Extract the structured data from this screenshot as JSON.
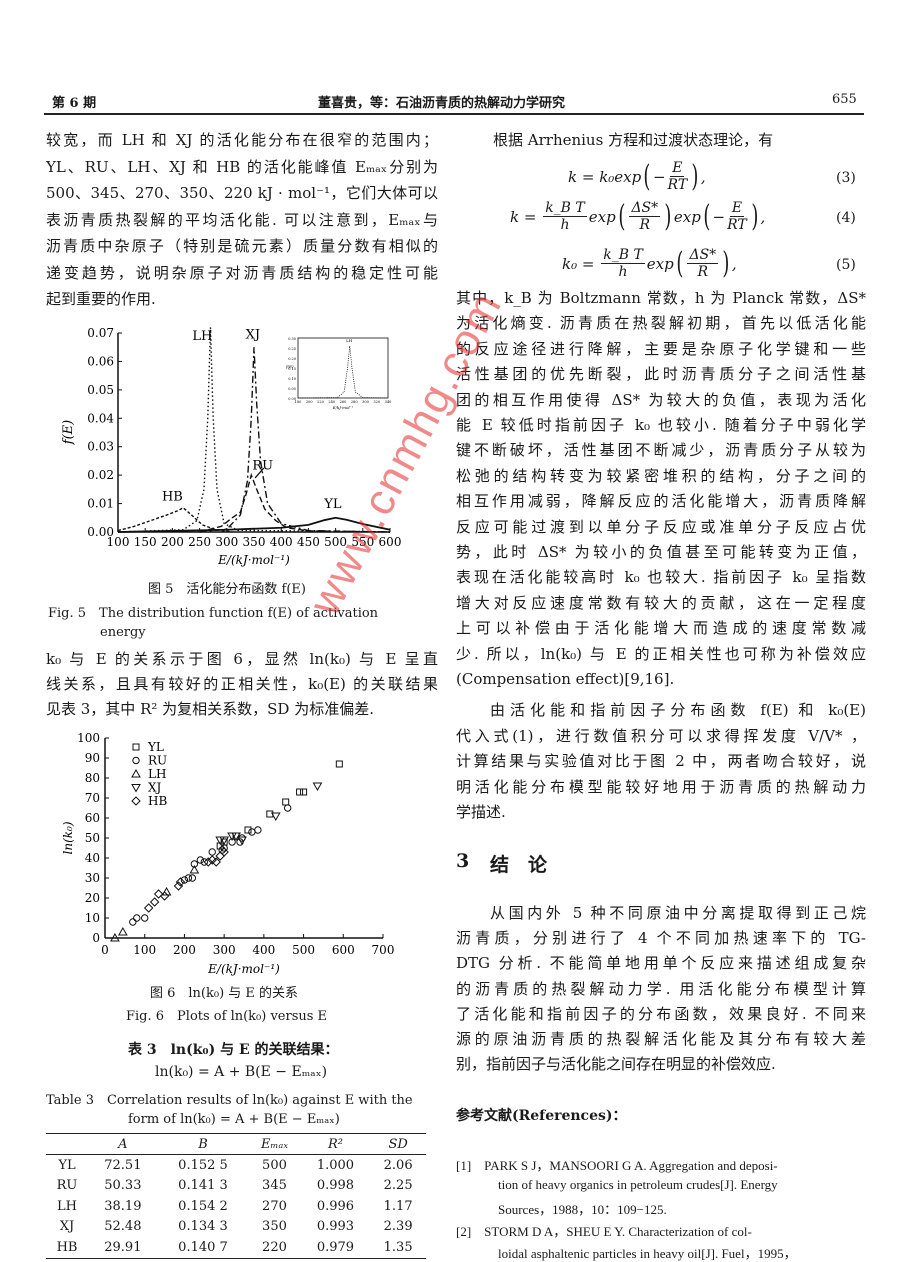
{
  "header": {
    "issue": "第 6 期",
    "title": "董喜贵，等：石油沥青质的热解动力学研究",
    "page": "655"
  },
  "left_top_lines": [
    "较宽，而 LH 和 XJ 的活化能分布在很窄的范围内；",
    "YL、RU、LH、XJ 和 HB 的活化能峰值 Eₘₐₓ分别为",
    "500、345、270、350、220 kJ · mol⁻¹，它们大体可以代",
    "表沥青质热裂解的平均活化能. 可以注意到，Eₘₐₓ与",
    "沥青质中杂原子（特别是硫元素）质量分数有相似的",
    "递变趋势，说明杂原子对沥青质结构的稳定性可能",
    "起到重要的作用."
  ],
  "fig5": {
    "caption_cn": "图 5　活化能分布函数 f(E)",
    "caption_en_1": "Fig. 5　The distribution function f(E) of activation",
    "caption_en_2": "energy"
  },
  "left_mid_lines": [
    "k₀ 与 E 的关系示于图 6，显然 ln(k₀) 与 E 呈直",
    "线关系，且具有较好的正相关性，k₀(E) 的关联结果",
    "见表 3，其中 R² 为复相关系数，SD 为标准偏差."
  ],
  "fig6": {
    "caption_cn": "图 6　ln(k₀) 与 E 的关系",
    "caption_en": "Fig. 6　Plots of ln(k₀) versus E"
  },
  "table3": {
    "title_cn_1": "表 3　ln(k₀) 与 E 的关联结果：",
    "title_cn_2": "ln(k₀) = A + B(E − Eₘₐₓ)",
    "title_en_1": "Table 3　Correlation results of ln(k₀) against E with the",
    "title_en_2": "form of ln(k₀) = A + B(E − Eₘₐₓ)",
    "columns": [
      "",
      "A",
      "B",
      "Eₘₐₓ",
      "R²",
      "SD"
    ],
    "rows": [
      [
        "YL",
        "72.51",
        "0.152 5",
        "500",
        "1.000",
        "2.06"
      ],
      [
        "RU",
        "50.33",
        "0.141 3",
        "345",
        "0.998",
        "2.25"
      ],
      [
        "LH",
        "38.19",
        "0.154 2",
        "270",
        "0.996",
        "1.17"
      ],
      [
        "XJ",
        "52.48",
        "0.134 3",
        "350",
        "0.993",
        "2.39"
      ],
      [
        "HB",
        "29.91",
        "0.140 7",
        "220",
        "0.979",
        "1.35"
      ]
    ]
  },
  "right_intro": "根据 Arrhenius 方程和过渡状态理论，有",
  "equations": [
    {
      "parts": [
        {
          "t": "k = k₀exp"
        },
        {
          "p": "("
        },
        {
          "t": "−"
        },
        {
          "n": "E",
          "d": "RT"
        },
        {
          "p": ")"
        },
        {
          "t": ","
        }
      ],
      "no": "(3)"
    },
    {
      "parts": [
        {
          "t": "k = "
        },
        {
          "n": "k_B T",
          "d": "h"
        },
        {
          "t": "exp"
        },
        {
          "p": "("
        },
        {
          "n": "ΔS*",
          "d": "R"
        },
        {
          "p": ")"
        },
        {
          "t": "exp"
        },
        {
          "p": "("
        },
        {
          "t": "−"
        },
        {
          "n": "E",
          "d": "RT"
        },
        {
          "p": ")"
        },
        {
          "t": ","
        }
      ],
      "no": "(4)"
    },
    {
      "parts": [
        {
          "t": "k₀ = "
        },
        {
          "n": "k_B T",
          "d": "h"
        },
        {
          "t": "exp"
        },
        {
          "p": "("
        },
        {
          "n": "ΔS*",
          "d": "R"
        },
        {
          "p": ")"
        },
        {
          "t": ","
        }
      ],
      "no": "(5)"
    }
  ],
  "right_lines_1": [
    "其中，k_B 为 Boltzmann 常数，h 为 Planck 常数，ΔS*",
    "为活化熵变. 沥青质在热裂解初期，首先以低活化能",
    "的反应途径进行降解，主要是杂原子化学键和一些",
    "活性基团的优先断裂，此时沥青质分子之间活性基",
    "团的相互作用使得 ΔS* 为较大的负值，表现为活化",
    "能 E 较低时指前因子 k₀ 也较小. 随着分子中弱化学",
    "键不断破坏，活性基团不断减少，沥青质分子从较为",
    "松弛的结构转变为较紧密堆积的结构，分子之间的",
    "相互作用减弱，降解反应的活化能增大，沥青质降解",
    "反应可能过渡到以单分子反应或准单分子反应占优",
    "势，此时 ΔS* 为较小的负值甚至可能转变为正值，",
    "表现在活化能较高时 k₀ 也较大. 指前因子 k₀ 呈指数",
    "增大对反应速度常数有较大的贡献，这在一定程度",
    "上可以补偿由于活化能增大而造成的速度常数减",
    "少. 所以，ln(k₀) 与 E 的正相关性也可称为补偿效应",
    "(Compensation effect)[9,16]."
  ],
  "right_lines_2": [
    "由活化能和指前因子分布函数 f(E) 和 k₀(E)",
    "代入式(1)，进行数值积分可以求得挥发度 V/V* ，",
    "计算结果与实验值对比于图 2 中，两者吻合较好，说",
    "明活化能分布模型能较好地用于沥青质的热解动力",
    "学描述."
  ],
  "section3": {
    "number": "3",
    "title": "结　论"
  },
  "conclusion_lines": [
    "从国内外 5 种不同原油中分离提取得到正己烷",
    "沥青质，分别进行了 4 个不同加热速率下的 TG-",
    "DTG 分析. 不能简单地用单个反应来描述组成复杂",
    "的沥青质的热裂解动力学. 用活化能分布模型计算",
    "了活化能和指前因子的分布函数，效果良好. 不同来",
    "源的原油沥青质的热裂解活化能及其分布有较大差",
    "别，指前因子与活化能之间存在明显的补偿效应."
  ],
  "references": {
    "heading": "参考文献(References)：",
    "lines": [
      "[1]　PARK S J，MANSOORI G A. Aggregation and deposi-",
      "tion of heavy organics in petroleum crudes[J]. Energy",
      "Sources，1988，10：109−125.",
      "[2]　STORM D A，SHEU E Y. Characterization of col-",
      "loidal asphaltenic particles in heavy oil[J]. Fuel，1995，"
    ]
  },
  "watermark": "www.cnmhg.com",
  "chart_data": [
    {
      "type": "line",
      "xlabel": "E/(kJ·mol⁻¹)",
      "ylabel": "f(E)",
      "xlim": [
        100,
        600
      ],
      "ylim": [
        0,
        0.07
      ],
      "xticks": [
        "100",
        "150",
        "200",
        "250",
        "300",
        "350",
        "400",
        "450",
        "500",
        "550",
        "600"
      ],
      "yticks": [
        "0.00",
        "0.01",
        "0.02",
        "0.03",
        "0.04",
        "0.05",
        "0.06",
        "0.07"
      ],
      "series": [
        {
          "name": "YL",
          "style": "solid",
          "x": [
            100,
            300,
            400,
            450,
            480,
            500,
            520,
            550,
            600
          ],
          "y": [
            0,
            0.0008,
            0.0015,
            0.0025,
            0.0042,
            0.005,
            0.0043,
            0.0028,
            0.0008
          ]
        },
        {
          "name": "RU",
          "style": "dashed",
          "x": [
            250,
            290,
            310,
            325,
            335,
            345,
            355,
            370,
            390,
            410,
            450,
            600
          ],
          "y": [
            0,
            0.002,
            0.005,
            0.007,
            0.013,
            0.02,
            0.015,
            0.008,
            0.004,
            0.0015,
            0.0004,
            0
          ]
        },
        {
          "name": "LH",
          "style": "dotted",
          "x": [
            100,
            220,
            245,
            258,
            265,
            270,
            275,
            282,
            295,
            320,
            600
          ],
          "y": [
            0,
            0.0008,
            0.004,
            0.015,
            0.04,
            0.072,
            0.04,
            0.015,
            0.003,
            0.0006,
            0
          ]
        },
        {
          "name": "XJ",
          "style": "dashdot",
          "x": [
            250,
            300,
            325,
            338,
            345,
            350,
            355,
            362,
            375,
            400,
            450,
            600
          ],
          "y": [
            0,
            0.001,
            0.006,
            0.018,
            0.04,
            0.065,
            0.045,
            0.025,
            0.01,
            0.003,
            0.0005,
            0
          ]
        },
        {
          "name": "HB",
          "style": "short-dash",
          "x": [
            100,
            130,
            160,
            190,
            210,
            220,
            235,
            255,
            280,
            310
          ],
          "y": [
            0.0005,
            0.002,
            0.004,
            0.006,
            0.0075,
            0.0085,
            0.006,
            0.0025,
            0.0008,
            0
          ]
        }
      ],
      "inset": {
        "label": "LH",
        "ylabel": "f(E)",
        "xlabel": "E/kJ·mol⁻¹",
        "xlim": [
          180,
          340
        ],
        "ylim": [
          0,
          0.3
        ],
        "xticks": [
          "180",
          "200",
          "220",
          "240",
          "260",
          "280",
          "300",
          "320",
          "340"
        ],
        "yticks": [
          "0.00",
          "0.05",
          "0.10",
          "0.15",
          "0.20",
          "0.25",
          "0.30"
        ],
        "x": [
          180,
          250,
          262,
          268,
          272,
          276,
          282,
          295,
          340
        ],
        "y": [
          0,
          0.002,
          0.03,
          0.15,
          0.26,
          0.15,
          0.03,
          0.002,
          0
        ]
      }
    },
    {
      "type": "scatter",
      "xlabel": "E/(kJ·mol⁻¹)",
      "ylabel": "ln(k₀)",
      "xlim": [
        0,
        700
      ],
      "ylim": [
        0,
        100
      ],
      "xticks": [
        "0",
        "100",
        "200",
        "300",
        "400",
        "500",
        "600",
        "700"
      ],
      "yticks": [
        "0",
        "10",
        "20",
        "30",
        "40",
        "50",
        "60",
        "70",
        "80",
        "90",
        "100"
      ],
      "legend": "top-left",
      "series": [
        {
          "name": "YL",
          "marker": "square",
          "x": [
            590,
            500,
            490,
            455,
            415,
            360,
            330,
            300,
            290
          ],
          "y": [
            87,
            73,
            73,
            68,
            62,
            54,
            51,
            48,
            46
          ]
        },
        {
          "name": "RU",
          "marker": "circle",
          "x": [
            460,
            385,
            370,
            345,
            340,
            320,
            300,
            295,
            270,
            225,
            240,
            250,
            200,
            210,
            220,
            100,
            80,
            70
          ],
          "y": [
            65,
            54,
            53,
            50,
            48,
            48,
            45,
            44,
            43,
            37,
            39,
            38,
            29,
            30,
            30,
            10,
            10,
            8
          ]
        },
        {
          "name": "LH",
          "marker": "triangle-up",
          "x": [
            25,
            45,
            225,
            155
          ],
          "y": [
            0,
            3,
            34,
            23
          ]
        },
        {
          "name": "XJ",
          "marker": "triangle-down",
          "x": [
            535,
            430,
            320,
            330,
            290,
            300,
            345
          ],
          "y": [
            76,
            61,
            51,
            51,
            49,
            49,
            49
          ]
        },
        {
          "name": "HB",
          "marker": "diamond",
          "x": [
            135,
            150,
            125,
            110,
            185,
            190,
            260,
            270,
            280,
            300,
            290
          ],
          "y": [
            22,
            21,
            18,
            15,
            26,
            28,
            38,
            39,
            38,
            43,
            41
          ]
        }
      ]
    }
  ]
}
